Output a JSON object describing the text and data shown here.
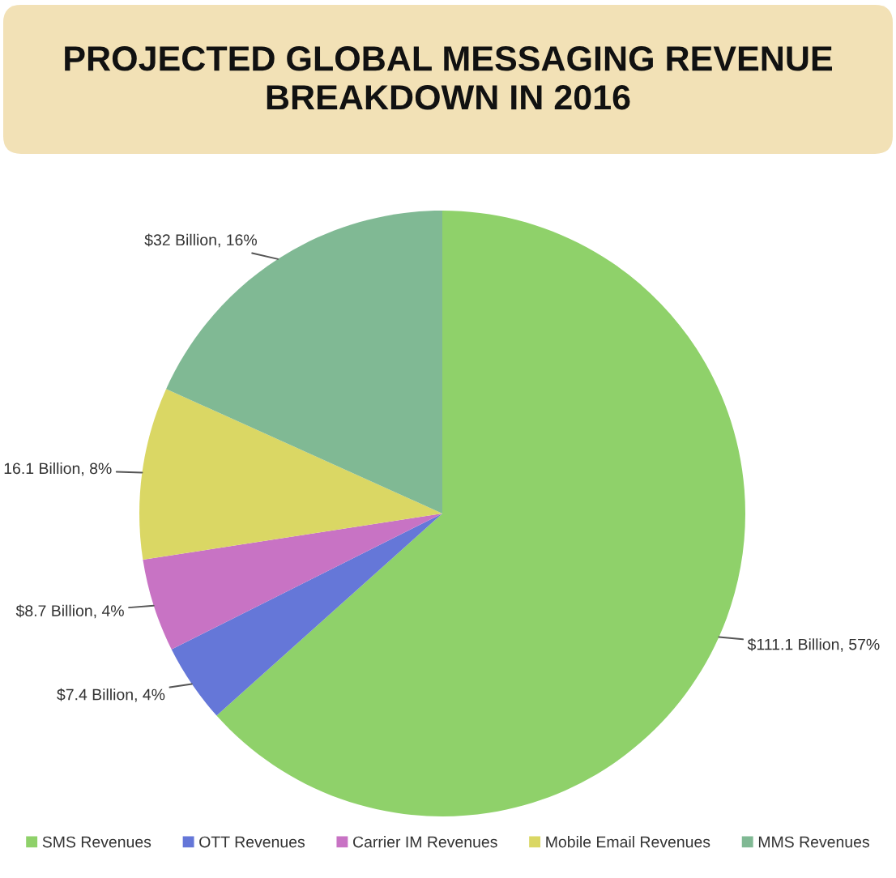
{
  "chart_data": {
    "type": "pie",
    "title": "PROJECTED GLOBAL MESSAGING REVENUE\nBREAKDOWN IN 2016",
    "categories": [
      "SMS Revenues",
      "OTT Revenues",
      "Carrier IM Revenues",
      "Mobile Email Revenues",
      "MMS Revenues"
    ],
    "values": [
      111.1,
      7.4,
      8.7,
      16.1,
      32
    ],
    "colors": [
      "#8fd16a",
      "#6577d8",
      "#c873c4",
      "#dad764",
      "#80b994"
    ],
    "value_labels": [
      "$111.1 Billion, 57%",
      "$7.4 Billion, 4%",
      "$8.7 Billion, 4%",
      "16.1 Billion, 8%",
      "$32 Billion, 16%"
    ],
    "legend": "bottom"
  }
}
